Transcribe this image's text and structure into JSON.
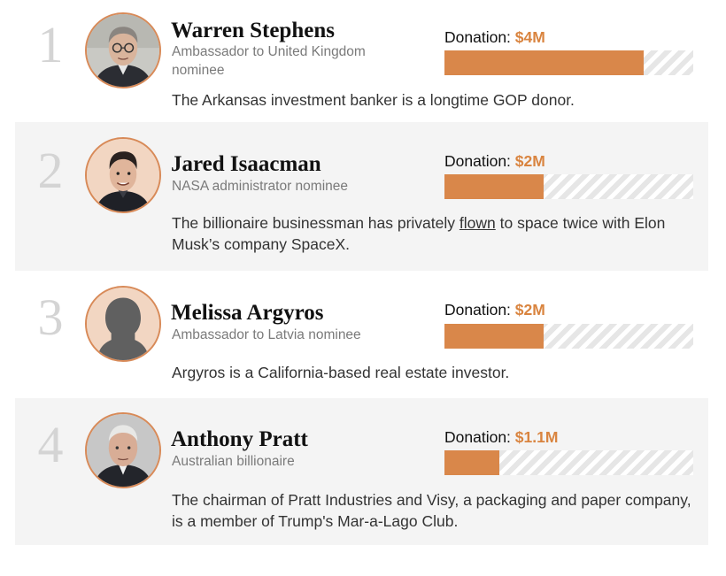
{
  "donation_label": "Donation: ",
  "scale_max_millions": 5,
  "colors": {
    "accent": "#d9843f",
    "bar_fill": "#d9874a",
    "avatar_ring": "#d88a58",
    "avatar_bg": "#f2d6c2"
  },
  "people": [
    {
      "rank": "1",
      "name": "Warren Stephens",
      "role": "Ambassador to United Kingdom nominee",
      "donation": "$4M",
      "donation_millions": 4.0,
      "desc_before": "The Arkansas investment banker is a longtime GOP donor.",
      "desc_link": "",
      "desc_after": "",
      "avatar_icon": "person-photo-icon"
    },
    {
      "rank": "2",
      "name": "Jared Isaacman",
      "role": "NASA administrator nominee",
      "donation": "$2M",
      "donation_millions": 2.0,
      "desc_before": "The billionaire businessman has privately ",
      "desc_link": "flown",
      "desc_after": " to space twice with Elon Musk’s company SpaceX.",
      "avatar_icon": "person-photo-icon"
    },
    {
      "rank": "3",
      "name": "Melissa Argyros",
      "role": "Ambassador to Latvia nominee",
      "donation": "$2M",
      "donation_millions": 2.0,
      "desc_before": "Argyros is a California-based real estate investor.",
      "desc_link": "",
      "desc_after": "",
      "avatar_icon": "silhouette-placeholder-icon"
    },
    {
      "rank": "4",
      "name": "Anthony Pratt",
      "role": "Australian billionaire",
      "donation": "$1.1M",
      "donation_millions": 1.1,
      "desc_before": "The chairman of Pratt Industries and Visy, a packaging and paper company, is a member of Trump's Mar-a-Lago Club.",
      "desc_link": "",
      "desc_after": "",
      "avatar_icon": "person-photo-icon"
    }
  ]
}
